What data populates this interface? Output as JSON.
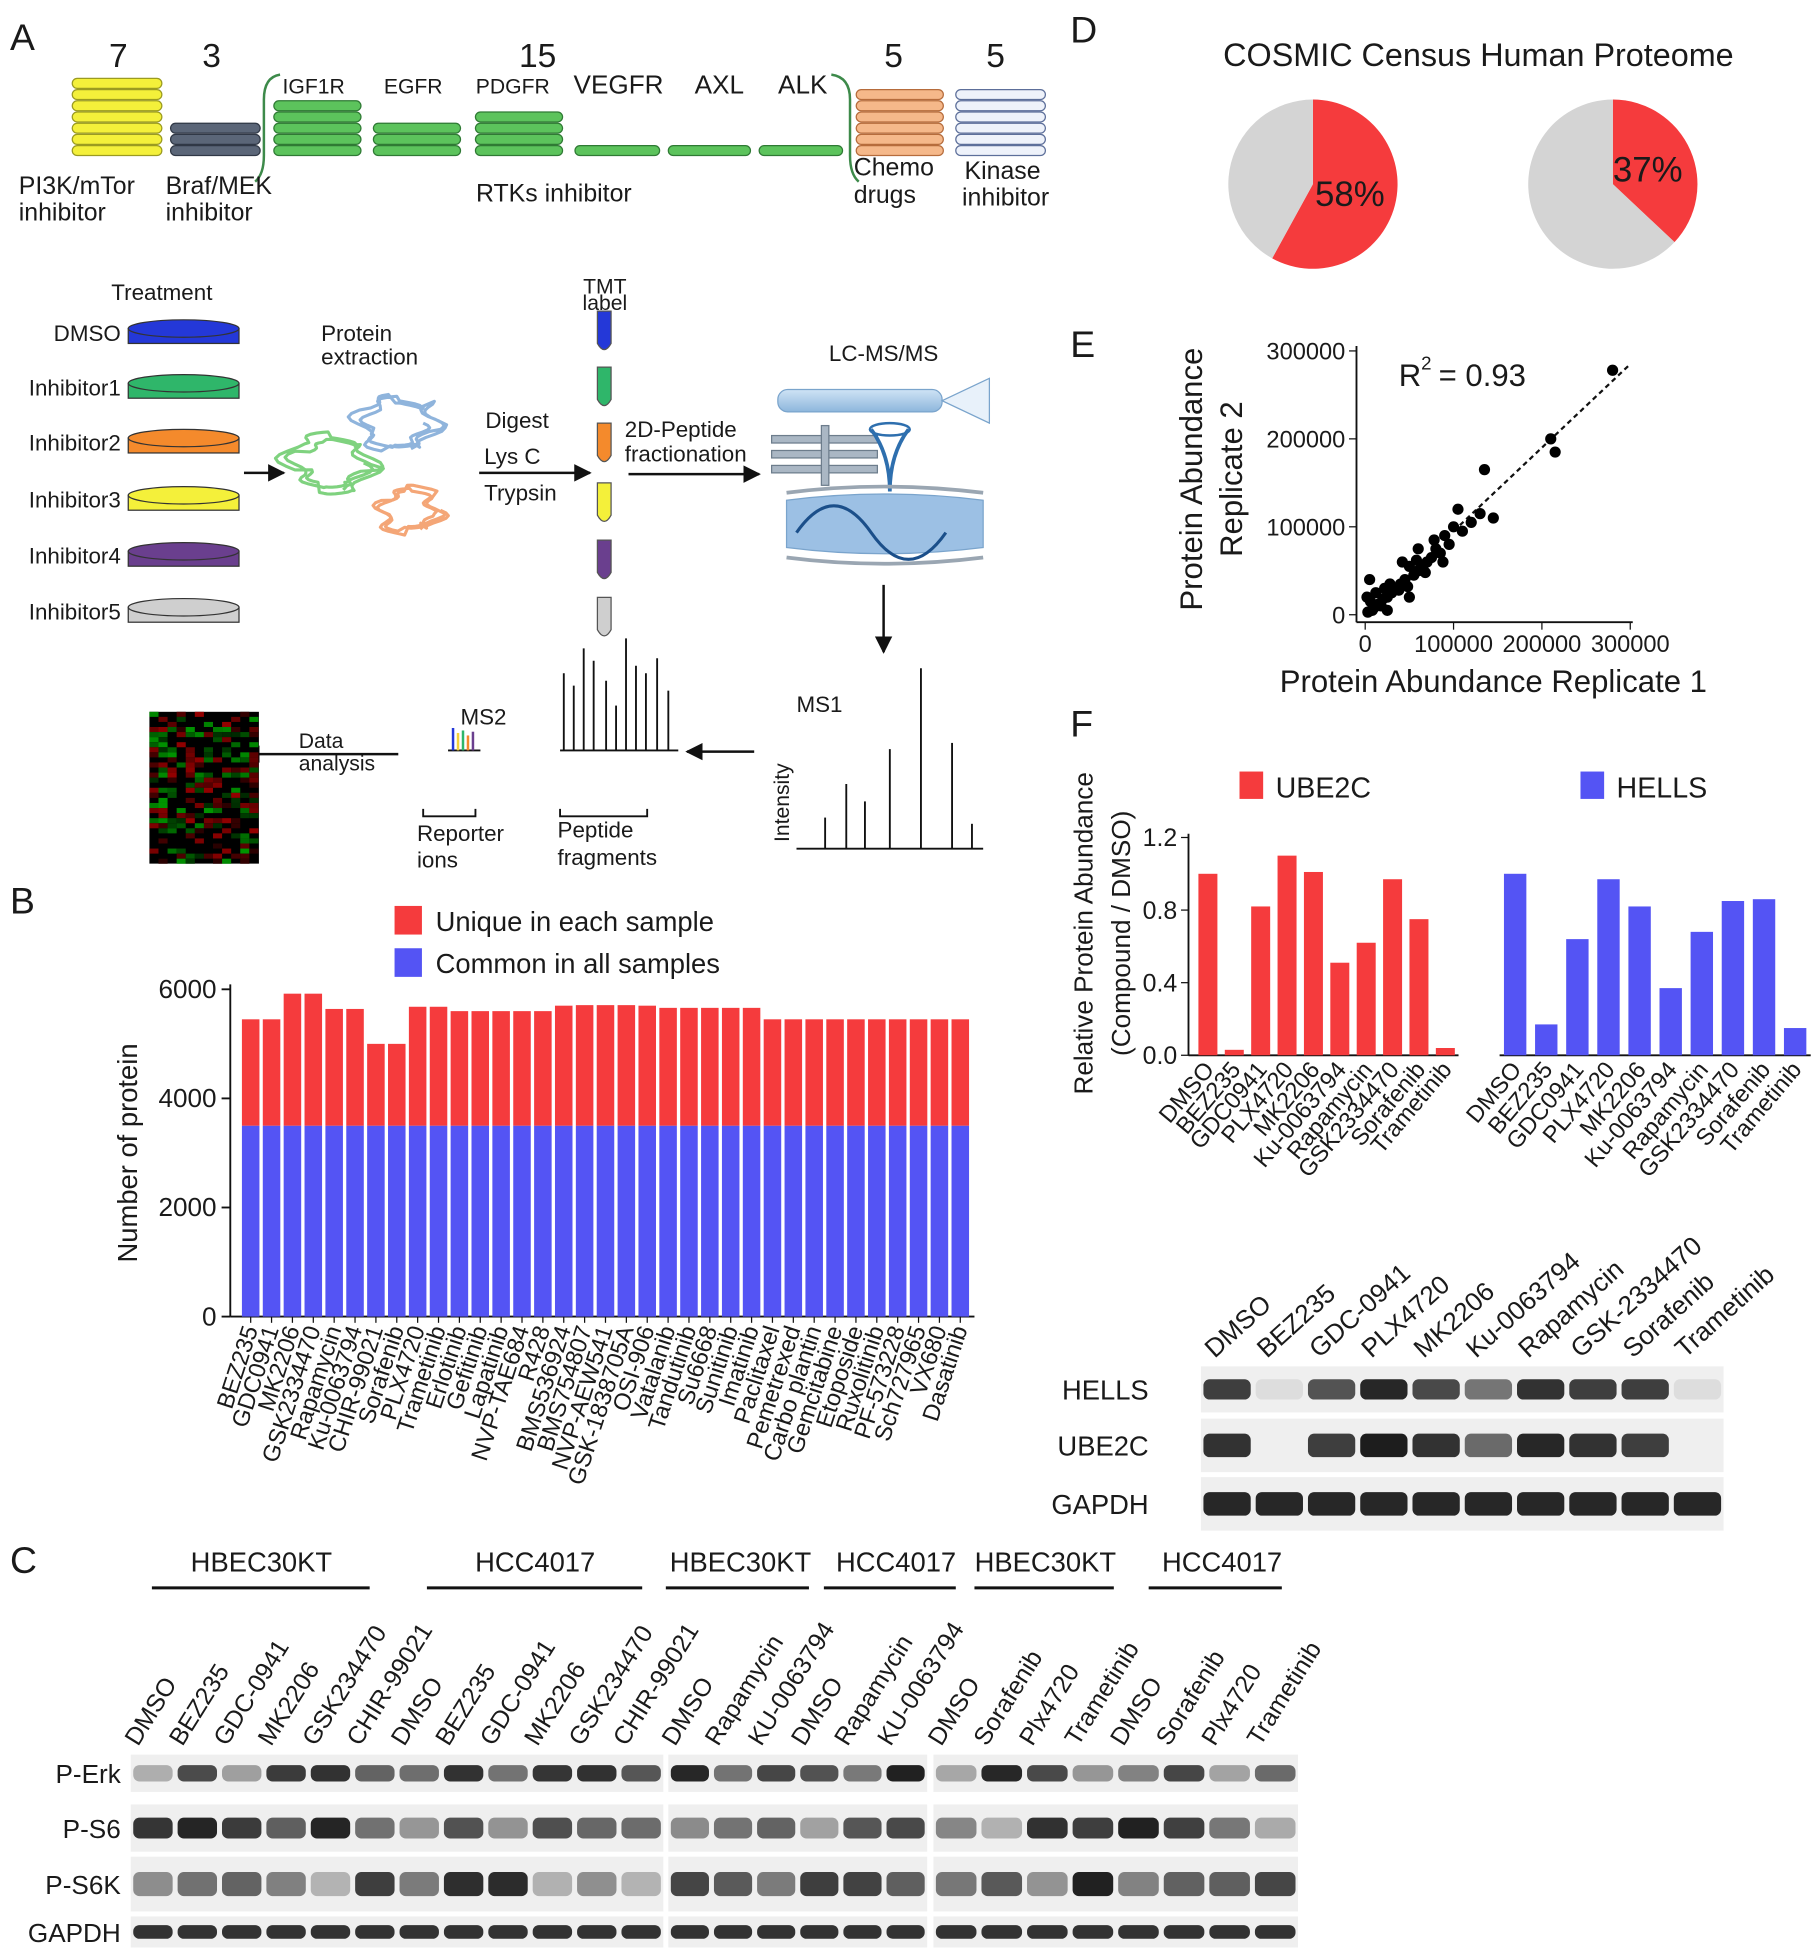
{
  "panel_labels": {
    "a": "A",
    "b": "B",
    "c": "C",
    "d": "D",
    "e": "E",
    "f": "F"
  },
  "inhibitor_classes": {
    "pi3k": {
      "count": 7,
      "label": [
        "PI3K/mTor",
        "inhibitor"
      ]
    },
    "braf": {
      "count": 3,
      "label": [
        "Braf/MEK",
        "inhibitor"
      ]
    },
    "rtk": {
      "count": 15,
      "targets": [
        "IGF1R",
        "EGFR",
        "PDGFR",
        "VEGFR",
        "AXL",
        "ALK"
      ],
      "label": "RTKs inhibitor"
    },
    "chemo": {
      "count": 5,
      "label": [
        "Chemo",
        "drugs"
      ]
    },
    "kinase": {
      "count": 5,
      "label": [
        "Kinase",
        "inhibitor"
      ]
    }
  },
  "workflow": {
    "treatment_title": "Treatment",
    "treatments": [
      "DMSO",
      "Inhibitor1",
      "Inhibitor2",
      "Inhibitor3",
      "Inhibitor4",
      "Inhibitor5"
    ],
    "protein_extraction": [
      "Protein",
      "extraction"
    ],
    "digest": [
      "Digest",
      "Lys C",
      "Trypsin"
    ],
    "tmt": [
      "TMT",
      "label"
    ],
    "fractionation": [
      "2D-Peptide",
      "fractionation"
    ],
    "lcms": "LC-MS/MS",
    "ms1": "MS1",
    "intensity": "Intensity",
    "ms2": "MS2",
    "reporter": [
      "Reporter",
      "ions"
    ],
    "fragments": [
      "Peptide",
      "fragments"
    ],
    "data_analysis": [
      "Data",
      "analysis"
    ]
  },
  "blot_c": {
    "cell_lines": [
      "HBEC30KT",
      "HCC4017",
      "HBEC30KT",
      "HCC4017",
      "HBEC30KT",
      "HCC4017"
    ],
    "lanes": [
      "DMSO",
      "BEZ235",
      "GDC-0941",
      "MK2206",
      "GSK234470",
      "CHIR-99021",
      "DMSO",
      "BEZ235",
      "GDC-0941",
      "MK2206",
      "GSK234470",
      "CHIR-99021",
      "DMSO",
      "Rapamycin",
      "KU-0063794",
      "DMSO",
      "Rapamycin",
      "KU-0063794",
      "DMSO",
      "Sorafenib",
      "Plx4720",
      "Trametinib",
      "DMSO",
      "Sorafenib",
      "Plx4720",
      "Trametinib"
    ],
    "rows": [
      "P-Erk",
      "P-S6",
      "P-S6K",
      "GAPDH"
    ]
  },
  "blot_f": {
    "lanes": [
      "DMSO",
      "BEZ235",
      "GDC-0941",
      "PLX4720",
      "MK2206",
      "Ku-0063794",
      "Rapamycin",
      "GSK-2334470",
      "Sorafenib",
      "Trametinib"
    ],
    "rows": [
      "HELLS",
      "UBE2C",
      "GAPDH"
    ]
  },
  "chart_data": [
    {
      "type": "bar",
      "stacked": true,
      "ylabel": "Number of protein",
      "categories": [
        "BEZ235",
        "GDC0941",
        "MK2206",
        "GSK2334470",
        "Rapamycin",
        "Ku-0063794",
        "CHIR-99021",
        "Sorafenib",
        "PLX4720",
        "Trametinib",
        "Erlotinib",
        "Gefitinib",
        "Lapatinib",
        "NVP-TAE684",
        "R428",
        "BMS536924",
        "BMS754807",
        "NVP-AEW541",
        "GSK-1838705A",
        "OSI-906",
        "Vatalanib",
        "Tandutinib",
        "Su6668",
        "Sunitinib",
        "Imatinib",
        "Paclitaxel",
        "Pemetrexed",
        "Carbo plantin",
        "Gemcitabine",
        "Etoposide",
        "Ruxolitinib",
        "PF-573228",
        "Sch727965",
        "VX680",
        "Dasatinib"
      ],
      "series": [
        {
          "name": "Unique in each sample",
          "color": "#f53b3d",
          "values": [
            1950,
            1950,
            2420,
            2420,
            2140,
            2140,
            1500,
            1500,
            2180,
            2180,
            2100,
            2100,
            2100,
            2100,
            2100,
            2200,
            2210,
            2210,
            2210,
            2200,
            2160,
            2160,
            2160,
            2160,
            2160,
            1950,
            1950,
            1950,
            1950,
            1950,
            1950,
            1950,
            1950,
            1950,
            1950
          ]
        },
        {
          "name": "Common in all samples",
          "color": "#5454f4",
          "values": [
            3500,
            3500,
            3500,
            3500,
            3500,
            3500,
            3500,
            3500,
            3500,
            3500,
            3500,
            3500,
            3500,
            3500,
            3500,
            3500,
            3500,
            3500,
            3500,
            3500,
            3500,
            3500,
            3500,
            3500,
            3500,
            3500,
            3500,
            3500,
            3500,
            3500,
            3500,
            3500,
            3500,
            3500,
            3500
          ]
        }
      ],
      "ylim": [
        0,
        6000
      ],
      "yticks": [
        0,
        2000,
        4000,
        6000
      ]
    },
    {
      "type": "pie",
      "title": "COSMIC Census Human Proteome",
      "colors": [
        "#f53b3d",
        "#d4d4d4"
      ],
      "pies": [
        {
          "values": [
            58,
            42
          ],
          "value_labels": [
            "58%",
            null
          ]
        },
        {
          "values": [
            37,
            63
          ],
          "value_labels": [
            "37%",
            null
          ]
        }
      ]
    },
    {
      "type": "scatter",
      "xlabel": "Protein Abundance Replicate 1",
      "ylabel": [
        "Protein Abundance",
        "Replicate 2"
      ],
      "annotation": {
        "text": "R",
        "superscript": "2",
        "rest": "= 0.93"
      },
      "color": "#000000",
      "x": [
        280000,
        210000,
        215000,
        135000,
        145000,
        130000,
        120000,
        110000,
        100000,
        95000,
        90000,
        85000,
        80000,
        75000,
        70000,
        65000,
        60000,
        55000,
        50000,
        45000,
        40000,
        35000,
        30000,
        25000,
        20000,
        15000,
        10000,
        5000,
        8000,
        3000,
        12000,
        18000,
        28000,
        38000,
        48000,
        58000,
        68000,
        78000,
        88000,
        105000,
        60000,
        42000,
        22000,
        6000,
        2000,
        25000,
        50000
      ],
      "y": [
        278000,
        200000,
        185000,
        165000,
        110000,
        115000,
        105000,
        95000,
        100000,
        80000,
        90000,
        70000,
        75000,
        65000,
        60000,
        55000,
        50000,
        45000,
        55000,
        40000,
        35000,
        30000,
        25000,
        20000,
        18000,
        12000,
        8000,
        40000,
        5000,
        3000,
        25000,
        10000,
        35000,
        28000,
        32000,
        62000,
        48000,
        85000,
        60000,
        120000,
        75000,
        60000,
        30000,
        15000,
        20000,
        5000,
        20000
      ],
      "trendline": {
        "x": [
          100000,
          300000
        ],
        "y": [
          95000,
          285000
        ]
      },
      "xlim": [
        0,
        300000
      ],
      "ylim": [
        0,
        300000
      ],
      "xticks": [
        0,
        100000,
        200000,
        300000
      ],
      "yticks": [
        0,
        100000,
        200000,
        300000
      ]
    },
    {
      "type": "bar",
      "ylabel": [
        "Relative Protein Abundance",
        "(Compound / DMSO)"
      ],
      "categories": [
        "DMSO",
        "BEZ235",
        "GDC0941",
        "PLX4720",
        "MK2206",
        "Ku-0063794",
        "Rapamycin",
        "GSK2334470",
        "Sorafenib",
        "Trametinib"
      ],
      "series": [
        {
          "name": "UBE2C",
          "color": "#f53b3d",
          "values": [
            1.0,
            0.03,
            0.82,
            1.1,
            1.01,
            0.51,
            0.62,
            0.97,
            0.75,
            0.04
          ]
        },
        {
          "name": "HELLS",
          "color": "#5454f4",
          "values": [
            1.0,
            0.17,
            0.64,
            0.97,
            0.82,
            0.37,
            0.68,
            0.85,
            0.86,
            0.15
          ]
        }
      ],
      "ylim": [
        0,
        1.2
      ],
      "yticks": [
        {
          "value": 0,
          "label": "0.0"
        },
        0.4,
        0.8,
        1.2
      ]
    }
  ]
}
